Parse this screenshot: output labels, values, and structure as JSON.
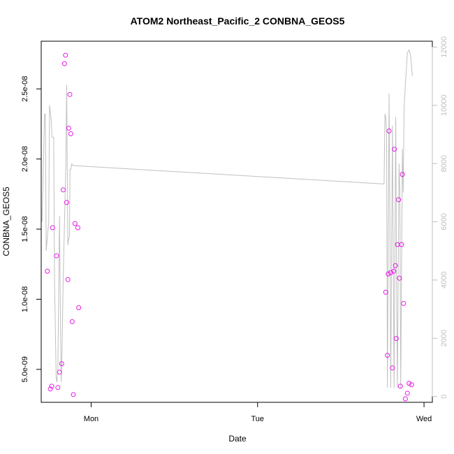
{
  "chart_data": {
    "type": "scatter",
    "title": "ATOM2 Northeast_Pacific_2 CONBNA_GEOS5",
    "xlabel": "Date",
    "ylabel": "CONBNA_GEOS5",
    "x_ticks": [
      {
        "label": "Mon",
        "value": 1.0
      },
      {
        "label": "Tue",
        "value": 2.0
      },
      {
        "label": "Wed",
        "value": 3.0
      }
    ],
    "y_ticks": [
      {
        "label": "5.0e-09",
        "value": 5e-09
      },
      {
        "label": "1.0e-08",
        "value": 1e-08
      },
      {
        "label": "1.5e-08",
        "value": 1.5e-08
      },
      {
        "label": "2.0e-08",
        "value": 2e-08
      },
      {
        "label": "2.5e-08",
        "value": 2.5e-08
      }
    ],
    "y2_ticks": [
      {
        "label": "0",
        "value": 0
      },
      {
        "label": "2000",
        "value": 2000
      },
      {
        "label": "4000",
        "value": 4000
      },
      {
        "label": "6000",
        "value": 6000
      },
      {
        "label": "8000",
        "value": 8000
      },
      {
        "label": "10000",
        "value": 10000
      },
      {
        "label": "12000",
        "value": 12000
      }
    ],
    "xlim": [
      0.7,
      3.05
    ],
    "ylim": [
      2.65e-09,
      2.84e-08
    ],
    "y2lim": [
      -200,
      12200
    ],
    "grid": false,
    "colors": {
      "points": "#e619e6",
      "line": "#c0c0c0",
      "axis": "#000000",
      "secondary_axis": "#bfbfbf"
    },
    "series": [
      {
        "type": "scatter",
        "axis": "left",
        "points": [
          [
            0.737,
            1.2e-08
          ],
          [
            0.755,
            3.6e-09
          ],
          [
            0.763,
            3.8e-09
          ],
          [
            0.768,
            1.51e-08
          ],
          [
            0.792,
            1.31e-08
          ],
          [
            0.8,
            3.7e-09
          ],
          [
            0.81,
            4.8e-09
          ],
          [
            0.823,
            5.4e-09
          ],
          [
            0.832,
            1.78e-08
          ],
          [
            0.84,
            2.68e-08
          ],
          [
            0.846,
            2.74e-08
          ],
          [
            0.853,
            1.69e-08
          ],
          [
            0.86,
            1.14e-08
          ],
          [
            0.865,
            2.22e-08
          ],
          [
            0.872,
            2.46e-08
          ],
          [
            0.878,
            2.18e-08
          ],
          [
            0.886,
            8.4e-09
          ],
          [
            0.893,
            3.2e-09
          ],
          [
            0.903,
            1.54e-08
          ],
          [
            0.92,
            1.51e-08
          ],
          [
            0.925,
            9.4e-09
          ],
          [
            2.77,
            1.05e-08
          ],
          [
            2.78,
            6e-09
          ],
          [
            2.785,
            1.18e-08
          ],
          [
            2.79,
            2.2e-08
          ],
          [
            2.8,
            1.19e-08
          ],
          [
            2.81,
            5.1e-09
          ],
          [
            2.818,
            1.2e-08
          ],
          [
            2.822,
            2.07e-08
          ],
          [
            2.828,
            1.24e-08
          ],
          [
            2.833,
            7.2e-09
          ],
          [
            2.84,
            1.39e-08
          ],
          [
            2.847,
            1.71e-08
          ],
          [
            2.852,
            1.15e-08
          ],
          [
            2.858,
            3.8e-09
          ],
          [
            2.865,
            1.39e-08
          ],
          [
            2.87,
            1.89e-08
          ],
          [
            2.877,
            9.7e-09
          ],
          [
            2.888,
            2.9e-09
          ],
          [
            2.9,
            3.3e-09
          ],
          [
            2.91,
            4e-09
          ],
          [
            2.925,
            3.9e-09
          ]
        ]
      },
      {
        "type": "line",
        "axis": "right",
        "points": [
          [
            0.705,
            6000
          ],
          [
            0.72,
            9700
          ],
          [
            0.725,
            9700
          ],
          [
            0.73,
            5000
          ],
          [
            0.745,
            6000
          ],
          [
            0.75,
            10000
          ],
          [
            0.76,
            9500
          ],
          [
            0.765,
            8900
          ],
          [
            0.775,
            8900
          ],
          [
            0.78,
            4000
          ],
          [
            0.79,
            600
          ],
          [
            0.795,
            500
          ],
          [
            0.8,
            900
          ],
          [
            0.81,
            6200
          ],
          [
            0.815,
            3000
          ],
          [
            0.82,
            500
          ],
          [
            0.825,
            1500
          ],
          [
            0.832,
            4000
          ],
          [
            0.84,
            6000
          ],
          [
            0.848,
            8000
          ],
          [
            0.853,
            10700
          ],
          [
            0.86,
            5200
          ],
          [
            0.865,
            5400
          ],
          [
            0.87,
            5500
          ],
          [
            0.873,
            7800
          ],
          [
            0.878,
            7800
          ],
          [
            0.881,
            7900
          ],
          [
            0.884,
            8000
          ],
          [
            0.887,
            7950
          ],
          [
            0.89,
            7930
          ],
          [
            2.75,
            7300
          ],
          [
            2.76,
            7300
          ],
          [
            2.765,
            9700
          ],
          [
            2.77,
            9600
          ],
          [
            2.775,
            9000
          ],
          [
            2.78,
            300
          ],
          [
            2.79,
            10400
          ],
          [
            2.795,
            6000
          ],
          [
            2.8,
            300
          ],
          [
            2.81,
            9300
          ],
          [
            2.815,
            5000
          ],
          [
            2.82,
            300
          ],
          [
            2.83,
            9600
          ],
          [
            2.835,
            4000
          ],
          [
            2.84,
            300
          ],
          [
            2.85,
            8000
          ],
          [
            2.855,
            7000
          ],
          [
            2.86,
            300
          ],
          [
            2.87,
            8500
          ],
          [
            2.875,
            7000
          ],
          [
            2.88,
            9900
          ],
          [
            2.89,
            10900
          ],
          [
            2.9,
            11800
          ],
          [
            2.91,
            11900
          ],
          [
            2.92,
            11700
          ],
          [
            2.93,
            11000
          ]
        ]
      }
    ]
  }
}
